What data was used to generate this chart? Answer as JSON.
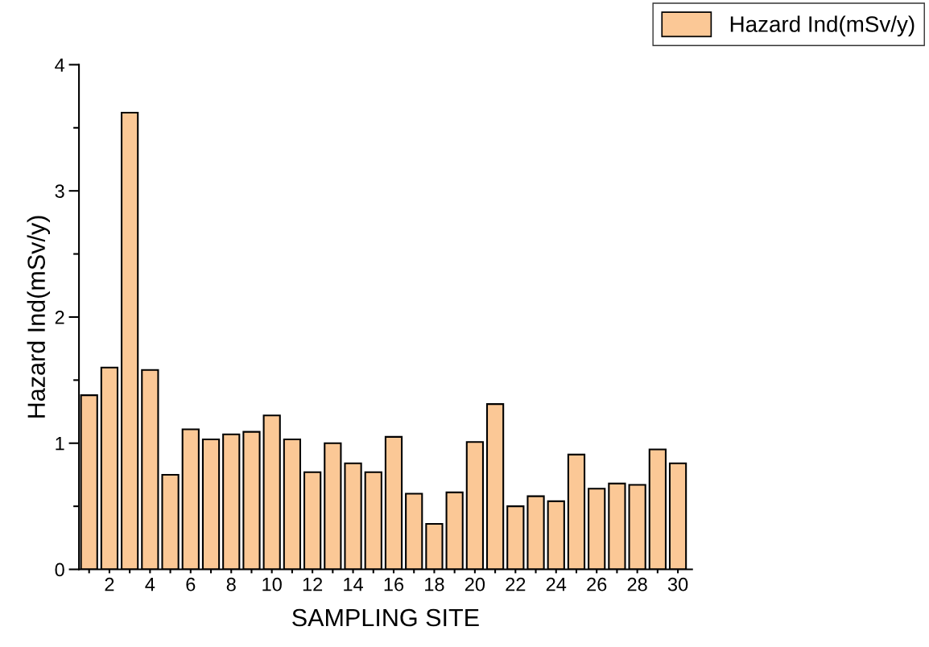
{
  "chart_data": {
    "type": "bar",
    "xlabel": "SAMPLING SITE",
    "ylabel": "Hazard Ind(mSv/y)",
    "categories": [
      null,
      "2",
      null,
      "4",
      null,
      "6",
      null,
      "8",
      null,
      "10",
      null,
      "12",
      null,
      "14",
      null,
      "16",
      null,
      "18",
      null,
      "20",
      null,
      "22",
      null,
      "24",
      null,
      "26",
      null,
      "28",
      null,
      "30"
    ],
    "series": [
      {
        "name": "Hazard Ind(mSv/y)",
        "color": "#fbc896",
        "values": [
          1.38,
          1.6,
          3.62,
          1.58,
          0.75,
          1.11,
          1.03,
          1.07,
          1.09,
          1.22,
          1.03,
          0.77,
          1.0,
          0.84,
          0.77,
          1.05,
          0.6,
          0.36,
          0.61,
          1.01,
          1.31,
          0.5,
          0.58,
          0.54,
          0.91,
          0.64,
          0.68,
          0.67,
          0.95,
          0.84
        ]
      }
    ],
    "ylim": [
      0,
      4
    ],
    "yticks": [
      0,
      1,
      2,
      3,
      4
    ],
    "legend": "top right",
    "grid": false
  }
}
